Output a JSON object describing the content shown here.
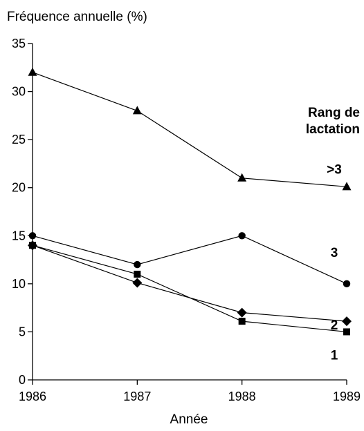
{
  "chart_data": {
    "type": "line",
    "ylabel": "Fréquence annuelle (%)",
    "xlabel": "Année",
    "x": [
      1986,
      1987,
      1988,
      1989
    ],
    "x_ticks": [
      "1986",
      "1987",
      "1988",
      "1989"
    ],
    "y_ticks": [
      "0",
      "5",
      "10",
      "15",
      "20",
      "25",
      "30",
      "35"
    ],
    "ylim": [
      0,
      35
    ],
    "grid": false,
    "legend_title_lines": [
      "Rang de",
      "lactation"
    ],
    "series": [
      {
        "name": ">3",
        "marker": "triangle",
        "values": [
          32,
          28,
          21,
          20.1
        ]
      },
      {
        "name": "3",
        "marker": "circle",
        "values": [
          15,
          12,
          15,
          10
        ]
      },
      {
        "name": "2",
        "marker": "diamond",
        "values": [
          14,
          10.1,
          7,
          6.1
        ]
      },
      {
        "name": "1",
        "marker": "square",
        "values": [
          14,
          11,
          6.1,
          5
        ]
      }
    ]
  }
}
